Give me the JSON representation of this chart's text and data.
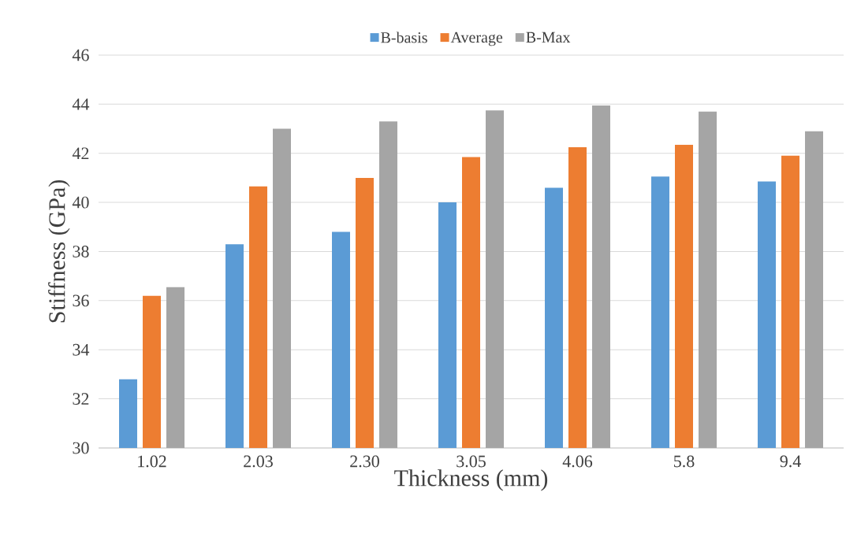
{
  "chart_data": {
    "type": "bar",
    "xlabel": "Thickness (mm)",
    "ylabel": "Stiffness (GPa)",
    "categories": [
      "1.02",
      "2.03",
      "2.30",
      "3.05",
      "4.06",
      "5.8",
      "9.4"
    ],
    "series": [
      {
        "name": "B-basis",
        "color": "#5b9bd5",
        "values": [
          32.8,
          38.3,
          38.8,
          40.0,
          40.6,
          41.05,
          40.85
        ]
      },
      {
        "name": "Average",
        "color": "#ed7d31",
        "values": [
          36.2,
          40.65,
          41.0,
          41.85,
          42.25,
          42.35,
          41.9
        ]
      },
      {
        "name": "B-Max",
        "color": "#a5a5a5",
        "values": [
          36.55,
          43.0,
          43.3,
          43.75,
          43.95,
          43.7,
          42.9
        ]
      }
    ],
    "ylim": [
      30,
      46
    ],
    "yticks": [
      30,
      32,
      34,
      36,
      38,
      40,
      42,
      44,
      46
    ],
    "grid": "y",
    "legend": "top"
  }
}
